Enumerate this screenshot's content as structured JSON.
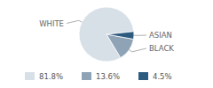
{
  "chart_data": {
    "type": "pie",
    "categories": [
      "WHITE",
      "BLACK",
      "ASIAN"
    ],
    "values": [
      81.8,
      13.6,
      4.5
    ],
    "value_labels": [
      "81.8%",
      "13.6%",
      "4.5%"
    ],
    "colors": [
      "#d7dfe7",
      "#8ea3b6",
      "#2d5b80"
    ],
    "legend": "bottom"
  }
}
